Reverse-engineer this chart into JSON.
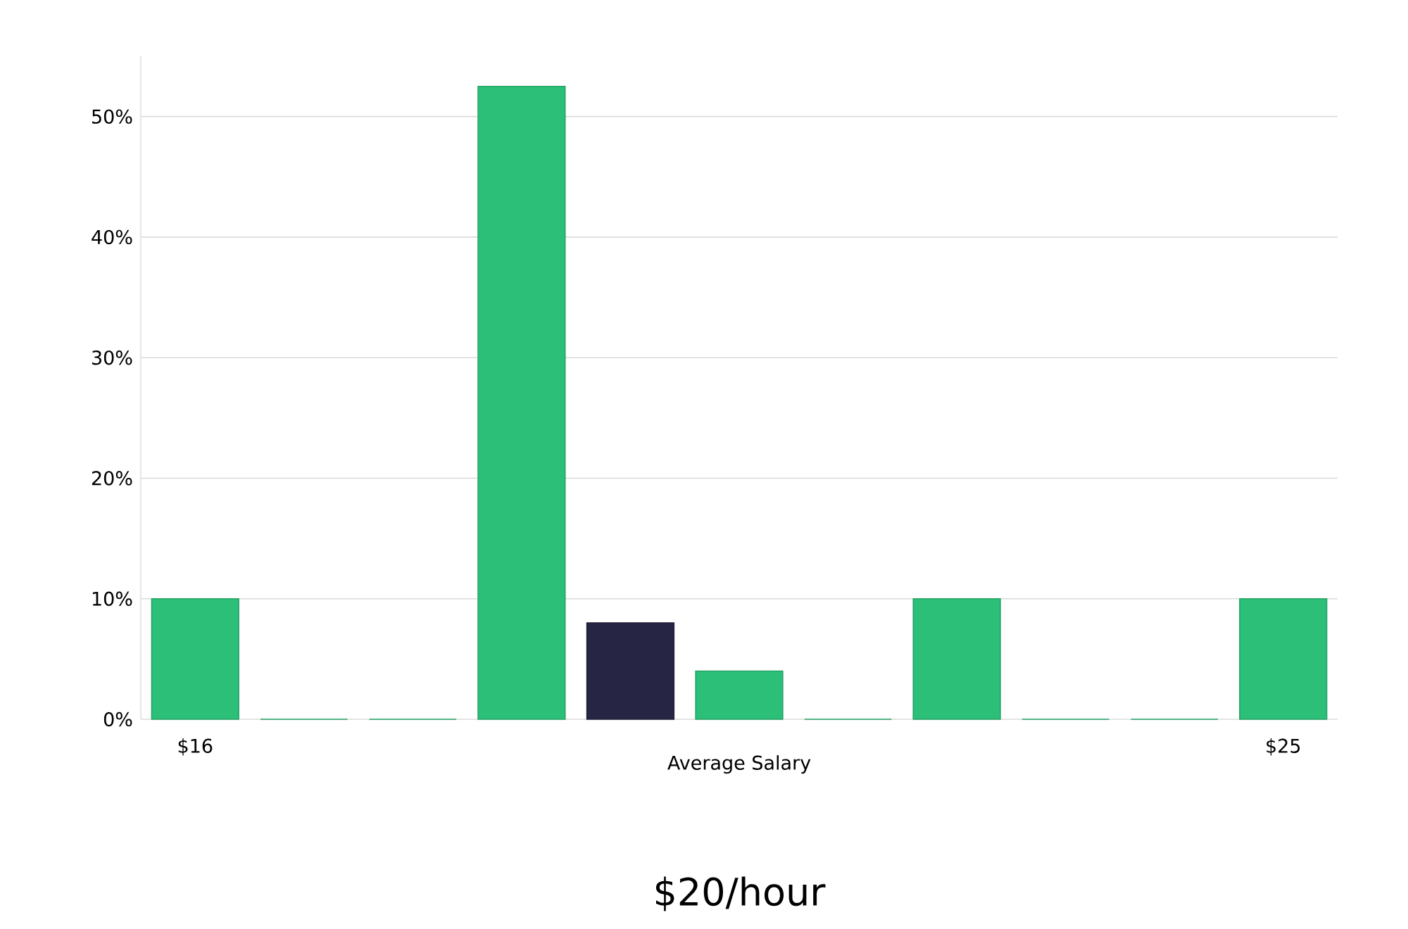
{
  "chart_data": {
    "type": "bar",
    "title": "$20/hour",
    "xlabel": "Average Salary",
    "categories": [
      "$16",
      null,
      null,
      null,
      null,
      null,
      null,
      null,
      null,
      null,
      "$25"
    ],
    "values": [
      10,
      0,
      0,
      52.5,
      8,
      4,
      0,
      10,
      0,
      0,
      10
    ],
    "colors": [
      "#2bbf77",
      "#2bbf77",
      "#2bbf77",
      "#2bbf77",
      "#272544",
      "#2bbf77",
      "#2bbf77",
      "#2bbf77",
      "#2bbf77",
      "#2bbf77",
      "#2bbf77"
    ],
    "ylim": [
      0,
      55
    ],
    "yticks": [
      {
        "value": 0,
        "label": "0%"
      },
      {
        "value": 10,
        "label": "10%"
      },
      {
        "value": 20,
        "label": "20%"
      },
      {
        "value": 30,
        "label": "30%"
      },
      {
        "value": 40,
        "label": "40%"
      },
      {
        "value": 50,
        "label": "50%"
      }
    ],
    "grid": "y"
  }
}
